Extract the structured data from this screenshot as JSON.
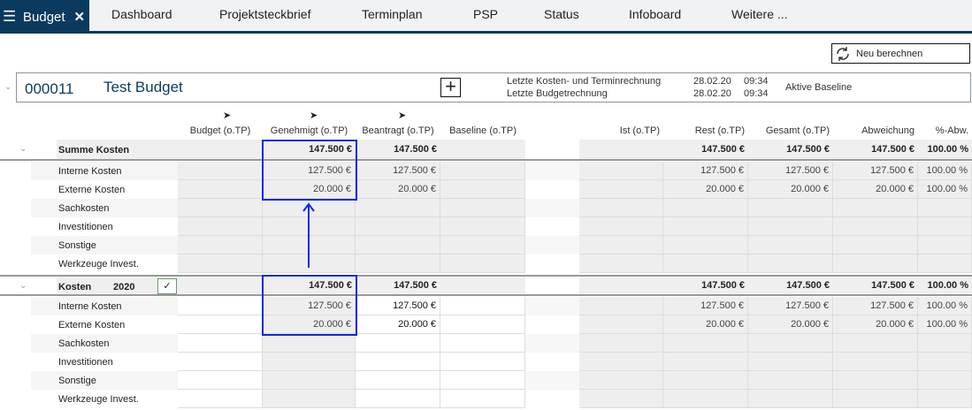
{
  "tabs": {
    "active": "Budget",
    "items": [
      "Dashboard",
      "Projektsteckbrief",
      "Terminplan",
      "PSP",
      "Status",
      "Infoboard",
      "Weitere ..."
    ]
  },
  "toolbar": {
    "recalc_label": "Neu berechnen"
  },
  "project": {
    "number": "000011",
    "name": "Test Budget",
    "last_cost_label": "Letzte Kosten- und Terminrechnung",
    "last_cost_date": "28.02.20",
    "last_cost_time": "09:34",
    "last_budget_label": "Letzte Budgetrechnung",
    "last_budget_date": "28.02.20",
    "last_budget_time": "09:34",
    "baseline_label": "Aktive Baseline"
  },
  "columns": [
    "Budget (o.TP)",
    "Genehmigt (o.TP)",
    "Beantragt (o.TP)",
    "Baseline (o.TP)",
    "Ist (o.TP)",
    "Rest (o.TP)",
    "Gesamt (o.TP)",
    "Abweichung",
    "%-Abw."
  ],
  "sections": [
    {
      "title": "Summe Kosten",
      "year": "",
      "checked": false,
      "totals": [
        "",
        "147.500 €",
        "147.500 €",
        "",
        "",
        "147.500 €",
        "147.500 €",
        "147.500 €",
        "100.00 %"
      ],
      "rows": [
        {
          "label": "Interne Kosten",
          "values": [
            "",
            "127.500 €",
            "127.500 €",
            "",
            "",
            "127.500 €",
            "127.500 €",
            "127.500 €",
            "100.00 %"
          ]
        },
        {
          "label": "Externe Kosten",
          "values": [
            "",
            "20.000 €",
            "20.000 €",
            "",
            "",
            "20.000 €",
            "20.000 €",
            "20.000 €",
            "100.00 %"
          ]
        },
        {
          "label": "Sachkosten",
          "values": [
            "",
            "",
            "",
            "",
            "",
            "",
            "",
            "",
            ""
          ]
        },
        {
          "label": "Investitionen",
          "values": [
            "",
            "",
            "",
            "",
            "",
            "",
            "",
            "",
            ""
          ]
        },
        {
          "label": "Sonstige",
          "values": [
            "",
            "",
            "",
            "",
            "",
            "",
            "",
            "",
            ""
          ]
        },
        {
          "label": "Werkzeuge Invest.",
          "values": [
            "",
            "",
            "",
            "",
            "",
            "",
            "",
            "",
            ""
          ]
        }
      ]
    },
    {
      "title": "Kosten",
      "year": "2020",
      "checked": true,
      "totals": [
        "",
        "147.500 €",
        "147.500 €",
        "",
        "",
        "147.500 €",
        "147.500 €",
        "147.500 €",
        "100.00 %"
      ],
      "rows": [
        {
          "label": "Interne Kosten",
          "values": [
            "",
            "127.500 €",
            "127.500 €",
            "",
            "",
            "127.500 €",
            "127.500 €",
            "127.500 €",
            "100.00 %"
          ]
        },
        {
          "label": "Externe Kosten",
          "values": [
            "",
            "20.000 €",
            "20.000 €",
            "",
            "",
            "20.000 €",
            "20.000 €",
            "20.000 €",
            "100.00 %"
          ]
        },
        {
          "label": "Sachkosten",
          "values": [
            "",
            "",
            "",
            "",
            "",
            "",
            "",
            "",
            ""
          ]
        },
        {
          "label": "Investitionen",
          "values": [
            "",
            "",
            "",
            "",
            "",
            "",
            "",
            "",
            ""
          ]
        },
        {
          "label": "Sonstige",
          "values": [
            "",
            "",
            "",
            "",
            "",
            "",
            "",
            "",
            ""
          ]
        },
        {
          "label": "Werkzeuge Invest.",
          "values": [
            "",
            "",
            "",
            "",
            "",
            "",
            "",
            "",
            ""
          ]
        }
      ]
    }
  ],
  "colors": {
    "accent": "#0b3a5e",
    "highlight": "#0a2ae6"
  }
}
